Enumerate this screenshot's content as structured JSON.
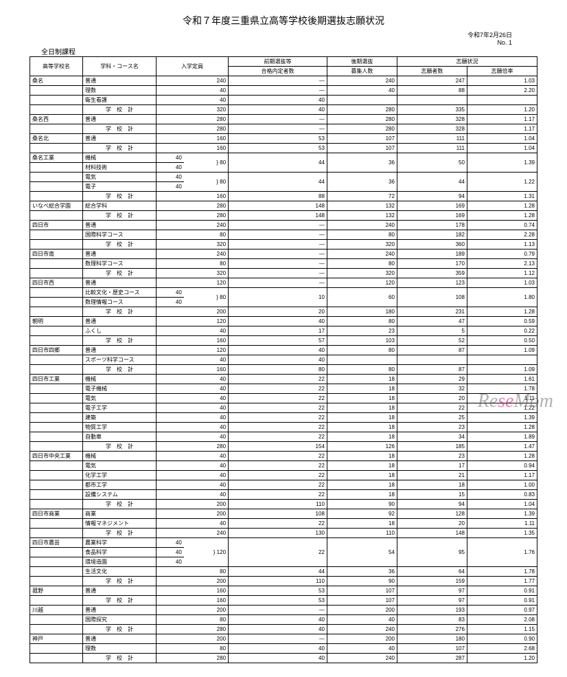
{
  "title": "令和７年度三重県立高等学校後期選抜志願状況",
  "date": "令和7年2月26日",
  "pageno": "No. 1",
  "program": "全日制課程",
  "headers": {
    "school": "高等学校名",
    "course": "学科・コース名",
    "capacity": "入学定員",
    "front": "前期選抜等",
    "front_sub": "合格内定者数",
    "rear": "後期選抜",
    "rear_sub": "募集人数",
    "status": "志願状況",
    "applicants": "志願者数",
    "ratio": "志願倍率"
  },
  "subtotal_label": "学　校　計",
  "rows": [
    {
      "school": "桑名",
      "course": "普通",
      "cap": "240",
      "front": "―",
      "rear": "240",
      "app": "247",
      "ratio": "1.03"
    },
    {
      "course": "理数",
      "cap": "40",
      "front": "―",
      "rear": "40",
      "app": "88",
      "ratio": "2.20"
    },
    {
      "course": "衛生看護",
      "cap": "40",
      "front": "40",
      "rear": "",
      "app": "",
      "ratio": "",
      "strike": true
    },
    {
      "total": true,
      "cap": "320",
      "front": "40",
      "rear": "280",
      "app": "335",
      "ratio": "1.20"
    },
    {
      "school": "桑名西",
      "course": "普通",
      "cap": "280",
      "front": "―",
      "rear": "280",
      "app": "328",
      "ratio": "1.17"
    },
    {
      "total": true,
      "cap": "280",
      "front": "―",
      "rear": "280",
      "app": "328",
      "ratio": "1.17"
    },
    {
      "school": "桑名北",
      "course": "普通",
      "cap": "160",
      "front": "53",
      "rear": "107",
      "app": "111",
      "ratio": "1.04"
    },
    {
      "total": true,
      "cap": "160",
      "front": "53",
      "rear": "107",
      "app": "111",
      "ratio": "1.04"
    },
    {
      "school": "桑名工業",
      "course": "機械",
      "cap": "40",
      "brace": "80",
      "front": "44",
      "rear": "36",
      "app": "50",
      "ratio": "1.39",
      "bracerows": 2
    },
    {
      "course": "材料技術",
      "cap": "40"
    },
    {
      "course": "電気",
      "cap": "40",
      "brace": "80",
      "front": "44",
      "rear": "36",
      "app": "44",
      "ratio": "1.22",
      "bracerows": 2
    },
    {
      "course": "電子",
      "cap": "40"
    },
    {
      "total": true,
      "cap": "160",
      "front": "88",
      "rear": "72",
      "app": "94",
      "ratio": "1.31"
    },
    {
      "school": "いなべ総合学園",
      "course": "総合学科",
      "cap": "280",
      "front": "148",
      "rear": "132",
      "app": "169",
      "ratio": "1.28"
    },
    {
      "total": true,
      "cap": "280",
      "front": "148",
      "rear": "132",
      "app": "169",
      "ratio": "1.28"
    },
    {
      "school": "四日市",
      "course": "普通",
      "cap": "240",
      "front": "―",
      "rear": "240",
      "app": "178",
      "ratio": "0.74"
    },
    {
      "course": "国際科学コース",
      "cap": "80",
      "front": "―",
      "rear": "80",
      "app": "182",
      "ratio": "2.28"
    },
    {
      "total": true,
      "cap": "320",
      "front": "―",
      "rear": "320",
      "app": "360",
      "ratio": "1.13"
    },
    {
      "school": "四日市南",
      "course": "普通",
      "cap": "240",
      "front": "―",
      "rear": "240",
      "app": "189",
      "ratio": "0.79"
    },
    {
      "course": "数理科学コース",
      "cap": "80",
      "front": "―",
      "rear": "80",
      "app": "170",
      "ratio": "2.13"
    },
    {
      "total": true,
      "cap": "320",
      "front": "―",
      "rear": "320",
      "app": "359",
      "ratio": "1.12"
    },
    {
      "school": "四日市西",
      "course": "普通",
      "cap": "120",
      "front": "―",
      "rear": "120",
      "app": "123",
      "ratio": "1.03"
    },
    {
      "course": "比較文化・歴史コース",
      "cap": "40",
      "brace": "80",
      "front": "10",
      "rear": "60",
      "app": "108",
      "ratio": "1.80",
      "bracerows": 2
    },
    {
      "course": "数理情報コース",
      "cap": "40",
      "front": "10"
    },
    {
      "total": true,
      "cap": "200",
      "front": "20",
      "rear": "180",
      "app": "231",
      "ratio": "1.28"
    },
    {
      "school": "朝明",
      "course": "普通",
      "cap": "120",
      "front": "40",
      "rear": "80",
      "app": "47",
      "ratio": "0.59"
    },
    {
      "course": "ふくし",
      "cap": "40",
      "front": "17",
      "rear": "23",
      "app": "5",
      "ratio": "0.22"
    },
    {
      "total": true,
      "cap": "160",
      "front": "57",
      "rear": "103",
      "app": "52",
      "ratio": "0.50"
    },
    {
      "school": "四日市四郷",
      "course": "普通",
      "cap": "120",
      "front": "40",
      "rear": "80",
      "app": "87",
      "ratio": "1.09"
    },
    {
      "course": "スポーツ科学コース",
      "cap": "40",
      "front": "40",
      "rear": "",
      "app": "",
      "ratio": "",
      "strike": true
    },
    {
      "total": true,
      "cap": "160",
      "front": "80",
      "rear": "80",
      "app": "87",
      "ratio": "1.09"
    },
    {
      "school": "四日市工業",
      "course": "機械",
      "cap": "40",
      "front": "22",
      "rear": "18",
      "app": "29",
      "ratio": "1.61"
    },
    {
      "course": "電子機械",
      "cap": "40",
      "front": "22",
      "rear": "18",
      "app": "32",
      "ratio": "1.78"
    },
    {
      "course": "電気",
      "cap": "40",
      "front": "22",
      "rear": "18",
      "app": "20",
      "ratio": "1.11"
    },
    {
      "course": "電子工学",
      "cap": "40",
      "front": "22",
      "rear": "18",
      "app": "22",
      "ratio": "1.22"
    },
    {
      "course": "建築",
      "cap": "40",
      "front": "22",
      "rear": "18",
      "app": "25",
      "ratio": "1.39"
    },
    {
      "course": "物質工学",
      "cap": "40",
      "front": "22",
      "rear": "18",
      "app": "23",
      "ratio": "1.28"
    },
    {
      "course": "自動車",
      "cap": "40",
      "front": "22",
      "rear": "18",
      "app": "34",
      "ratio": "1.89"
    },
    {
      "total": true,
      "cap": "280",
      "front": "154",
      "rear": "126",
      "app": "185",
      "ratio": "1.47"
    },
    {
      "school": "四日市中央工業",
      "course": "機械",
      "cap": "40",
      "front": "22",
      "rear": "18",
      "app": "23",
      "ratio": "1.28"
    },
    {
      "course": "電気",
      "cap": "40",
      "front": "22",
      "rear": "18",
      "app": "17",
      "ratio": "0.94"
    },
    {
      "course": "化学工学",
      "cap": "40",
      "front": "22",
      "rear": "18",
      "app": "21",
      "ratio": "1.17"
    },
    {
      "course": "都市工学",
      "cap": "40",
      "front": "22",
      "rear": "18",
      "app": "18",
      "ratio": "1.00"
    },
    {
      "course": "設備システム",
      "cap": "40",
      "front": "22",
      "rear": "18",
      "app": "15",
      "ratio": "0.83"
    },
    {
      "total": true,
      "cap": "200",
      "front": "110",
      "rear": "90",
      "app": "94",
      "ratio": "1.04"
    },
    {
      "school": "四日市商業",
      "course": "商業",
      "cap": "200",
      "front": "108",
      "rear": "92",
      "app": "128",
      "ratio": "1.39"
    },
    {
      "course": "情報マネジメント",
      "cap": "40",
      "front": "22",
      "rear": "18",
      "app": "20",
      "ratio": "1.11"
    },
    {
      "total": true,
      "cap": "240",
      "front": "130",
      "rear": "110",
      "app": "148",
      "ratio": "1.35"
    },
    {
      "school": "四日市農芸",
      "course": "農業科学",
      "cap": "40",
      "brace": "120",
      "front": "22",
      "rear": "54",
      "app": "95",
      "ratio": "1.76",
      "bracerows": 3
    },
    {
      "course": "食品科学",
      "cap": "40",
      "front": "22"
    },
    {
      "course": "環境造園",
      "cap": "40",
      "front": "22"
    },
    {
      "course": "生活文化",
      "cap": "80",
      "front": "44",
      "rear": "36",
      "app": "64",
      "ratio": "1.78"
    },
    {
      "total": true,
      "cap": "200",
      "front": "110",
      "rear": "90",
      "app": "159",
      "ratio": "1.77"
    },
    {
      "school": "菰野",
      "course": "普通",
      "cap": "160",
      "front": "53",
      "rear": "107",
      "app": "97",
      "ratio": "0.91"
    },
    {
      "total": true,
      "cap": "160",
      "front": "53",
      "rear": "107",
      "app": "97",
      "ratio": "0.91"
    },
    {
      "school": "川越",
      "course": "普通",
      "cap": "200",
      "front": "―",
      "rear": "200",
      "app": "193",
      "ratio": "0.97"
    },
    {
      "course": "国際探究",
      "cap": "80",
      "front": "40",
      "rear": "40",
      "app": "83",
      "ratio": "2.08"
    },
    {
      "total": true,
      "cap": "280",
      "front": "40",
      "rear": "240",
      "app": "276",
      "ratio": "1.15"
    },
    {
      "school": "神戸",
      "course": "普通",
      "cap": "200",
      "front": "―",
      "rear": "200",
      "app": "180",
      "ratio": "0.90"
    },
    {
      "course": "理数",
      "cap": "80",
      "front": "40",
      "rear": "40",
      "app": "107",
      "ratio": "2.68"
    },
    {
      "total": true,
      "cap": "280",
      "front": "40",
      "rear": "240",
      "app": "287",
      "ratio": "1.20"
    }
  ],
  "watermark": {
    "text1": "Re",
    "text2": "se",
    "text3": "Mom"
  }
}
